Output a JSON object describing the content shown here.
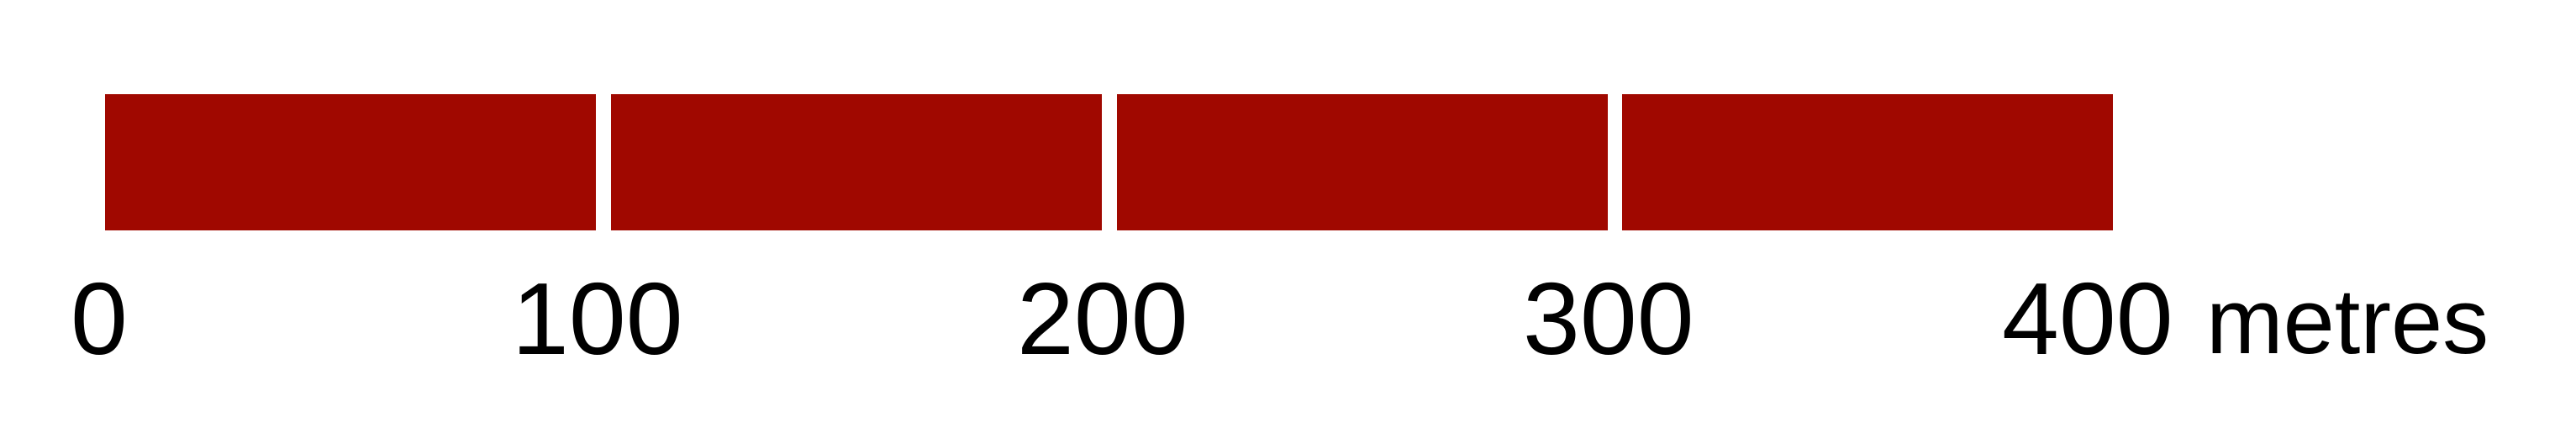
{
  "scale_bar": {
    "bar_color": "#a00800",
    "segment_count": 4,
    "ticks": [
      "0",
      "100",
      "200",
      "300",
      "400"
    ],
    "unit": "metres"
  }
}
